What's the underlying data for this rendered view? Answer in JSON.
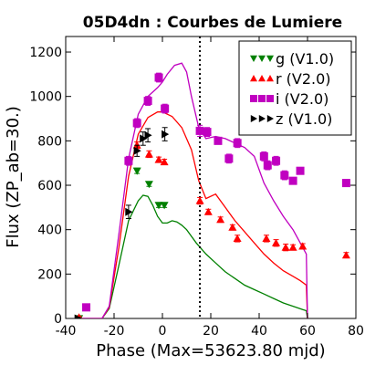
{
  "chart_data": {
    "type": "scatter",
    "title": "05D4dn : Courbes de Lumiere",
    "xlabel": "Phase (Max=53623.80 mjd)",
    "ylabel": "Flux (ZP_ab=30.)",
    "xlim": [
      -40,
      80
    ],
    "ylim": [
      0,
      1270
    ],
    "xticks": [
      -40,
      -20,
      0,
      20,
      40,
      60,
      80
    ],
    "yticks": [
      0,
      200,
      400,
      600,
      800,
      1000,
      1200
    ],
    "grid": false,
    "legend_position": "top-right",
    "vline_x": 15.5,
    "series": [
      {
        "name": "g (V1.0)",
        "color": "#008000",
        "marker": "triangle-down",
        "points": [
          {
            "x": -34.5,
            "y": 0,
            "err": 5
          },
          {
            "x": -10.5,
            "y": 665,
            "err": 12
          },
          {
            "x": -5.5,
            "y": 605,
            "err": 10
          },
          {
            "x": -1.5,
            "y": 510,
            "err": 10
          },
          {
            "x": 0.8,
            "y": 510,
            "err": 10
          }
        ],
        "model": {
          "x": [
            -35,
            -25,
            -22,
            -18,
            -14,
            -10,
            -8,
            -6,
            -4,
            -2,
            0,
            2,
            4,
            6,
            8,
            10,
            14,
            18,
            22,
            26,
            30,
            34,
            38,
            42,
            46,
            50,
            54,
            58,
            59.5,
            60
          ],
          "y": [
            0,
            0,
            45,
            240,
            440,
            530,
            555,
            550,
            510,
            460,
            430,
            430,
            440,
            435,
            420,
            400,
            340,
            290,
            250,
            210,
            180,
            150,
            130,
            110,
            90,
            70,
            55,
            40,
            35,
            0
          ]
        }
      },
      {
        "name": "r (V2.0)",
        "color": "#ff0000",
        "marker": "triangle-up",
        "points": [
          {
            "x": -34.5,
            "y": 5,
            "err": 5
          },
          {
            "x": -10.5,
            "y": 780,
            "err": 15
          },
          {
            "x": -5.5,
            "y": 740,
            "err": 15
          },
          {
            "x": -1.5,
            "y": 715,
            "err": 12
          },
          {
            "x": 0.8,
            "y": 705,
            "err": 12
          },
          {
            "x": 15.5,
            "y": 530,
            "err": 15
          },
          {
            "x": 19,
            "y": 480,
            "err": 12
          },
          {
            "x": 24,
            "y": 445,
            "err": 12
          },
          {
            "x": 29,
            "y": 410,
            "err": 12
          },
          {
            "x": 31,
            "y": 360,
            "err": 15
          },
          {
            "x": 43,
            "y": 360,
            "err": 15
          },
          {
            "x": 47,
            "y": 340,
            "err": 15
          },
          {
            "x": 51,
            "y": 320,
            "err": 15
          },
          {
            "x": 54,
            "y": 320,
            "err": 12
          },
          {
            "x": 58,
            "y": 325,
            "err": 12
          },
          {
            "x": 76,
            "y": 285,
            "err": 12
          }
        ],
        "model": {
          "x": [
            -35,
            -25,
            -22,
            -18,
            -14,
            -10,
            -6,
            -2,
            0,
            4,
            8,
            12,
            15,
            18,
            22,
            26,
            30,
            34,
            38,
            42,
            46,
            50,
            54,
            57,
            59.5,
            60
          ],
          "y": [
            0,
            0,
            50,
            320,
            640,
            830,
            905,
            930,
            930,
            910,
            860,
            760,
            620,
            540,
            560,
            500,
            440,
            390,
            340,
            290,
            250,
            215,
            190,
            170,
            150,
            0
          ]
        }
      },
      {
        "name": "i (V2.0)",
        "color": "#c000c0",
        "marker": "square",
        "points": [
          {
            "x": -31.5,
            "y": 50,
            "err": 15
          },
          {
            "x": -14,
            "y": 710,
            "err": 20
          },
          {
            "x": -10.5,
            "y": 880,
            "err": 20
          },
          {
            "x": -6,
            "y": 980,
            "err": 20
          },
          {
            "x": -1.5,
            "y": 1085,
            "err": 20
          },
          {
            "x": 1,
            "y": 945,
            "err": 20
          },
          {
            "x": 15.5,
            "y": 845,
            "err": 25
          },
          {
            "x": 18.5,
            "y": 840,
            "err": 20
          },
          {
            "x": 23,
            "y": 800,
            "err": 15
          },
          {
            "x": 27.5,
            "y": 720,
            "err": 20
          },
          {
            "x": 31,
            "y": 790,
            "err": 20
          },
          {
            "x": 42,
            "y": 730,
            "err": 20
          },
          {
            "x": 43.5,
            "y": 690,
            "err": 20
          },
          {
            "x": 47,
            "y": 710,
            "err": 20
          },
          {
            "x": 50.5,
            "y": 645,
            "err": 20
          },
          {
            "x": 54,
            "y": 620,
            "err": 15
          },
          {
            "x": 57,
            "y": 665,
            "err": 15
          },
          {
            "x": 76,
            "y": 610,
            "err": 15
          }
        ],
        "model": {
          "x": [
            -35,
            -25,
            -22,
            -18,
            -14,
            -10,
            -6,
            -2,
            0,
            2,
            5,
            8,
            10,
            12,
            15,
            18,
            22,
            26,
            30,
            34,
            38,
            42,
            46,
            50,
            54,
            57,
            59.5,
            60
          ],
          "y": [
            0,
            0,
            55,
            380,
            720,
            920,
            1000,
            1040,
            1065,
            1100,
            1140,
            1150,
            1110,
            1000,
            860,
            810,
            820,
            810,
            790,
            770,
            730,
            610,
            530,
            460,
            400,
            340,
            290,
            0
          ]
        }
      },
      {
        "name": "z (V1.0)",
        "color": "#000000",
        "marker": "triangle-right",
        "points": [
          {
            "x": -35,
            "y": 0,
            "err": 5
          },
          {
            "x": -14,
            "y": 480,
            "err": 30
          },
          {
            "x": -10.5,
            "y": 755,
            "err": 25
          },
          {
            "x": -8,
            "y": 810,
            "err": 30
          },
          {
            "x": -6,
            "y": 825,
            "err": 30
          },
          {
            "x": 1,
            "y": 830,
            "err": 30
          }
        ]
      }
    ]
  }
}
